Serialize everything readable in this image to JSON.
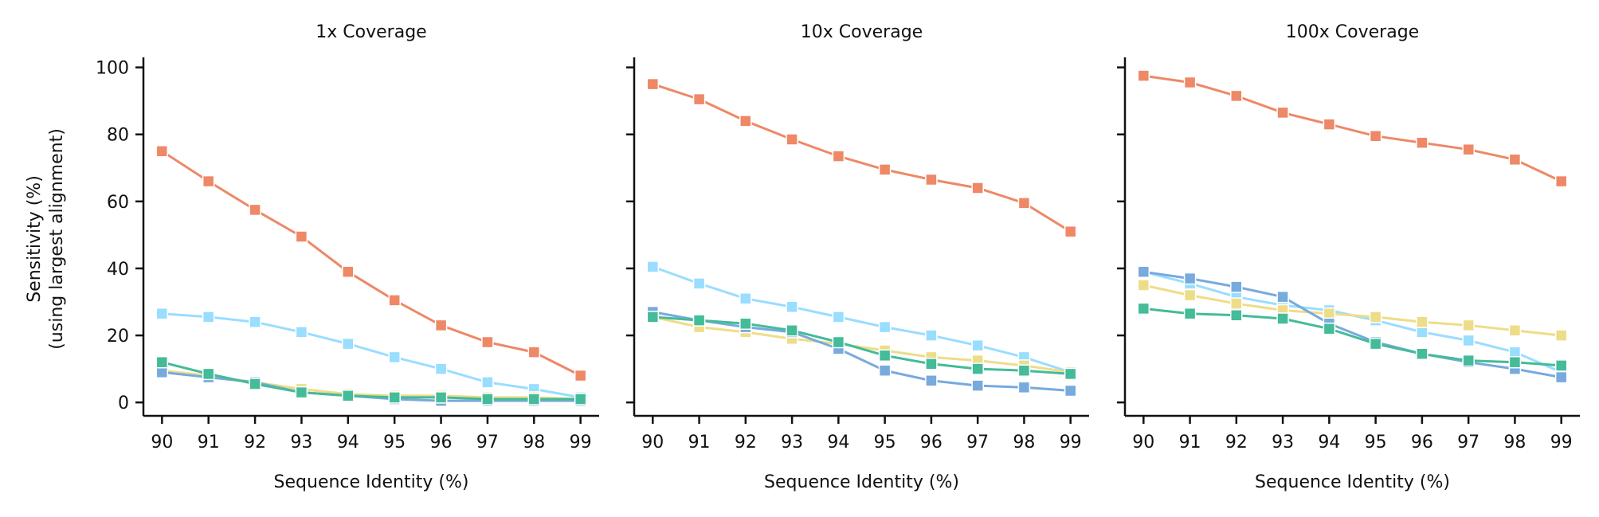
{
  "figure": {
    "ylabel_line1": "Sensitivity (%)",
    "ylabel_line2": "(using largest alignment)"
  },
  "chart_data": [
    {
      "type": "line",
      "title": "1x Coverage",
      "xlabel": "Sequence Identity (%)",
      "ylabel": "Sensitivity (%) (using largest alignment)",
      "x": [
        90,
        91,
        92,
        93,
        94,
        95,
        96,
        97,
        98,
        99
      ],
      "xlim": [
        89.6,
        99.4
      ],
      "ylim": [
        -4,
        103
      ],
      "yticks": [
        0,
        20,
        40,
        60,
        80,
        100
      ],
      "series": [
        {
          "color": "#ee8866",
          "values": [
            75,
            66,
            57.5,
            49.5,
            39,
            30.5,
            23,
            18,
            15,
            8
          ]
        },
        {
          "color": "#99ddff",
          "values": [
            26.5,
            25.5,
            24,
            21,
            17.5,
            13.5,
            10,
            6,
            4,
            1.5
          ]
        },
        {
          "color": "#eedd88",
          "values": [
            9.5,
            8,
            6,
            4,
            2.5,
            2,
            2,
            1.5,
            1.5,
            1
          ]
        },
        {
          "color": "#77aadd",
          "values": [
            9,
            7.5,
            6,
            3,
            2,
            1,
            0.5,
            0.5,
            0.5,
            0.5
          ]
        },
        {
          "color": "#44bb99",
          "values": [
            12,
            8.5,
            5.5,
            3,
            2,
            1.5,
            1.5,
            1,
            1,
            1
          ]
        }
      ]
    },
    {
      "type": "line",
      "title": "10x Coverage",
      "xlabel": "Sequence Identity (%)",
      "ylabel": "",
      "x": [
        90,
        91,
        92,
        93,
        94,
        95,
        96,
        97,
        98,
        99
      ],
      "xlim": [
        89.6,
        99.4
      ],
      "ylim": [
        -4,
        103
      ],
      "yticks": [
        0,
        20,
        40,
        60,
        80,
        100
      ],
      "series": [
        {
          "color": "#ee8866",
          "values": [
            95,
            90.5,
            84,
            78.5,
            73.5,
            69.5,
            66.5,
            64,
            59.5,
            51
          ]
        },
        {
          "color": "#99ddff",
          "values": [
            40.5,
            35.5,
            31,
            28.5,
            25.5,
            22.5,
            20,
            17,
            13.5,
            9
          ]
        },
        {
          "color": "#eedd88",
          "values": [
            25.5,
            22.5,
            21,
            19,
            17.5,
            15.5,
            13.5,
            12.5,
            11,
            9
          ]
        },
        {
          "color": "#77aadd",
          "values": [
            27,
            24.5,
            22.5,
            21,
            16,
            9.5,
            6.5,
            5,
            4.5,
            3.5
          ]
        },
        {
          "color": "#44bb99",
          "values": [
            25.5,
            24.5,
            23.5,
            21.5,
            18,
            14,
            11.5,
            10,
            9.5,
            8.5
          ]
        }
      ]
    },
    {
      "type": "line",
      "title": "100x Coverage",
      "xlabel": "Sequence Identity (%)",
      "ylabel": "",
      "x": [
        90,
        91,
        92,
        93,
        94,
        95,
        96,
        97,
        98,
        99
      ],
      "xlim": [
        89.6,
        99.4
      ],
      "ylim": [
        -4,
        103
      ],
      "yticks": [
        0,
        20,
        40,
        60,
        80,
        100
      ],
      "series": [
        {
          "color": "#ee8866",
          "values": [
            97.5,
            95.5,
            91.5,
            86.5,
            83,
            79.5,
            77.5,
            75.5,
            72.5,
            66
          ]
        },
        {
          "color": "#99ddff",
          "values": [
            39,
            35.5,
            31.5,
            29,
            27.5,
            24.5,
            21,
            18.5,
            15,
            9
          ]
        },
        {
          "color": "#eedd88",
          "values": [
            35,
            32,
            29.5,
            27.5,
            26.5,
            25.5,
            24,
            23,
            21.5,
            20
          ]
        },
        {
          "color": "#77aadd",
          "values": [
            39,
            37,
            34.5,
            31.5,
            23.5,
            18,
            14.5,
            12,
            10,
            7.5
          ]
        },
        {
          "color": "#44bb99",
          "values": [
            28,
            26.5,
            26,
            25,
            22,
            17.5,
            14.5,
            12.5,
            12,
            11
          ]
        }
      ]
    }
  ]
}
